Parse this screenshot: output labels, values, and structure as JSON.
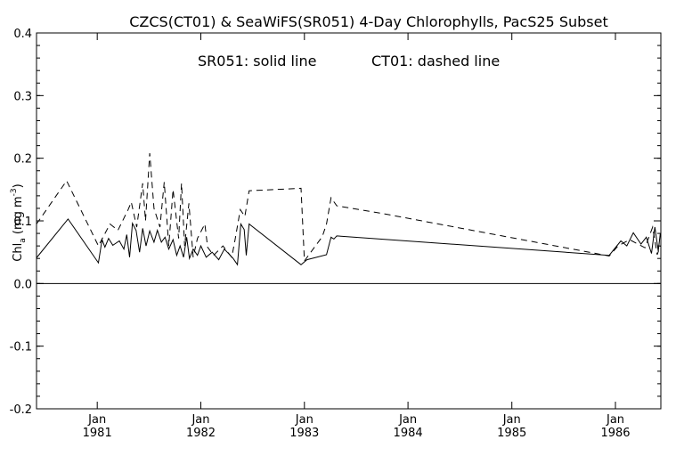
{
  "chart_data": {
    "type": "line",
    "title": "CZCS(CT01) & SeaWiFS(SR051) 4-Day Chlorophylls, PacS25 Subset",
    "annotation": {
      "solid": "SR051: solid line",
      "dashed": "CT01: dashed line"
    },
    "ylabel": {
      "main": "Chl",
      "sub": "a",
      "unit_open": " (mg m",
      "unit_sup": "-3",
      "unit_close": ")"
    },
    "xlabel": "",
    "ylim": [
      -0.2,
      0.4
    ],
    "xlim": [
      "1980-06-01",
      "1986-06-10"
    ],
    "y_ticks": [
      -0.2,
      -0.1,
      0.0,
      0.1,
      0.2,
      0.3,
      0.4
    ],
    "y_tick_labels": [
      "-0.2",
      "-0.1",
      "0.0",
      "0.1",
      "0.2",
      "0.3",
      "0.4"
    ],
    "x_ticks": [
      {
        "date": "1981-01-01",
        "line1": "Jan",
        "line2": "1981"
      },
      {
        "date": "1982-01-01",
        "line1": "Jan",
        "line2": "1982"
      },
      {
        "date": "1983-01-01",
        "line1": "Jan",
        "line2": "1983"
      },
      {
        "date": "1984-01-01",
        "line1": "Jan",
        "line2": "1984"
      },
      {
        "date": "1985-01-01",
        "line1": "Jan",
        "line2": "1985"
      },
      {
        "date": "1986-01-01",
        "line1": "Jan",
        "line2": "1986"
      }
    ],
    "zero_line": 0.0,
    "grid": false,
    "series": [
      {
        "name": "SR051",
        "style": "solid",
        "points": [
          [
            "1980-06-01",
            0.041
          ],
          [
            "1980-09-20",
            0.103
          ],
          [
            "1981-01-05",
            0.033
          ],
          [
            "1981-01-18",
            0.07
          ],
          [
            "1981-01-28",
            0.058
          ],
          [
            "1981-02-10",
            0.072
          ],
          [
            "1981-02-25",
            0.061
          ],
          [
            "1981-03-20",
            0.068
          ],
          [
            "1981-04-05",
            0.055
          ],
          [
            "1981-04-15",
            0.078
          ],
          [
            "1981-04-25",
            0.042
          ],
          [
            "1981-05-05",
            0.096
          ],
          [
            "1981-05-18",
            0.085
          ],
          [
            "1981-05-30",
            0.05
          ],
          [
            "1981-06-10",
            0.088
          ],
          [
            "1981-06-22",
            0.06
          ],
          [
            "1981-07-05",
            0.084
          ],
          [
            "1981-07-20",
            0.066
          ],
          [
            "1981-08-01",
            0.085
          ],
          [
            "1981-08-15",
            0.066
          ],
          [
            "1981-08-28",
            0.074
          ],
          [
            "1981-09-10",
            0.055
          ],
          [
            "1981-09-25",
            0.07
          ],
          [
            "1981-10-08",
            0.045
          ],
          [
            "1981-10-20",
            0.06
          ],
          [
            "1981-11-01",
            0.042
          ],
          [
            "1981-11-12",
            0.074
          ],
          [
            "1981-11-22",
            0.04
          ],
          [
            "1981-12-05",
            0.055
          ],
          [
            "1981-12-20",
            0.045
          ],
          [
            "1982-01-01",
            0.06
          ],
          [
            "1982-01-20",
            0.042
          ],
          [
            "1982-02-10",
            0.05
          ],
          [
            "1982-03-05",
            0.038
          ],
          [
            "1982-03-25",
            0.055
          ],
          [
            "1982-04-25",
            0.04
          ],
          [
            "1982-05-10",
            0.03
          ],
          [
            "1982-05-22",
            0.095
          ],
          [
            "1982-06-03",
            0.086
          ],
          [
            "1982-06-10",
            0.045
          ],
          [
            "1982-06-20",
            0.095
          ],
          [
            "1982-12-20",
            0.03
          ],
          [
            "1983-01-10",
            0.038
          ],
          [
            "1983-03-20",
            0.046
          ],
          [
            "1983-04-05",
            0.074
          ],
          [
            "1983-04-15",
            0.071
          ],
          [
            "1983-04-25",
            0.076
          ],
          [
            "1985-12-10",
            0.045
          ],
          [
            "1986-01-20",
            0.068
          ],
          [
            "1986-02-10",
            0.06
          ],
          [
            "1986-03-05",
            0.081
          ],
          [
            "1986-04-01",
            0.063
          ],
          [
            "1986-04-20",
            0.074
          ],
          [
            "1986-05-08",
            0.048
          ],
          [
            "1986-05-20",
            0.09
          ],
          [
            "1986-06-01",
            0.052
          ],
          [
            "1986-06-08",
            0.08
          ]
        ]
      },
      {
        "name": "CT01",
        "style": "dashed",
        "points": [
          [
            "1980-06-01",
            0.095
          ],
          [
            "1980-09-15",
            0.164
          ],
          [
            "1981-01-05",
            0.06
          ],
          [
            "1981-02-15",
            0.095
          ],
          [
            "1981-03-15",
            0.085
          ],
          [
            "1981-04-20",
            0.118
          ],
          [
            "1981-05-01",
            0.13
          ],
          [
            "1981-05-20",
            0.09
          ],
          [
            "1981-06-10",
            0.16
          ],
          [
            "1981-06-20",
            0.1
          ],
          [
            "1981-07-05",
            0.208
          ],
          [
            "1981-07-20",
            0.12
          ],
          [
            "1981-08-10",
            0.09
          ],
          [
            "1981-08-25",
            0.162
          ],
          [
            "1981-09-10",
            0.06
          ],
          [
            "1981-09-25",
            0.15
          ],
          [
            "1981-10-15",
            0.072
          ],
          [
            "1981-10-25",
            0.16
          ],
          [
            "1981-11-05",
            0.06
          ],
          [
            "1981-11-20",
            0.128
          ],
          [
            "1981-12-05",
            0.042
          ],
          [
            "1981-12-20",
            0.072
          ],
          [
            "1982-01-15",
            0.095
          ],
          [
            "1982-01-25",
            0.058
          ],
          [
            "1982-02-15",
            0.045
          ],
          [
            "1982-03-20",
            0.06
          ],
          [
            "1982-04-20",
            0.042
          ],
          [
            "1982-05-01",
            0.068
          ],
          [
            "1982-05-20",
            0.118
          ],
          [
            "1982-06-05",
            0.107
          ],
          [
            "1982-06-20",
            0.148
          ],
          [
            "1982-12-20",
            0.152
          ],
          [
            "1983-01-01",
            0.036
          ],
          [
            "1983-03-05",
            0.075
          ],
          [
            "1983-03-20",
            0.095
          ],
          [
            "1983-04-05",
            0.137
          ],
          [
            "1983-04-25",
            0.124
          ],
          [
            "1983-10-01",
            0.112
          ],
          [
            "1985-12-10",
            0.044
          ],
          [
            "1986-01-10",
            0.06
          ],
          [
            "1986-02-20",
            0.07
          ],
          [
            "1986-04-15",
            0.057
          ],
          [
            "1986-05-12",
            0.09
          ],
          [
            "1986-05-28",
            0.046
          ],
          [
            "1986-06-08",
            0.06
          ]
        ]
      }
    ]
  }
}
